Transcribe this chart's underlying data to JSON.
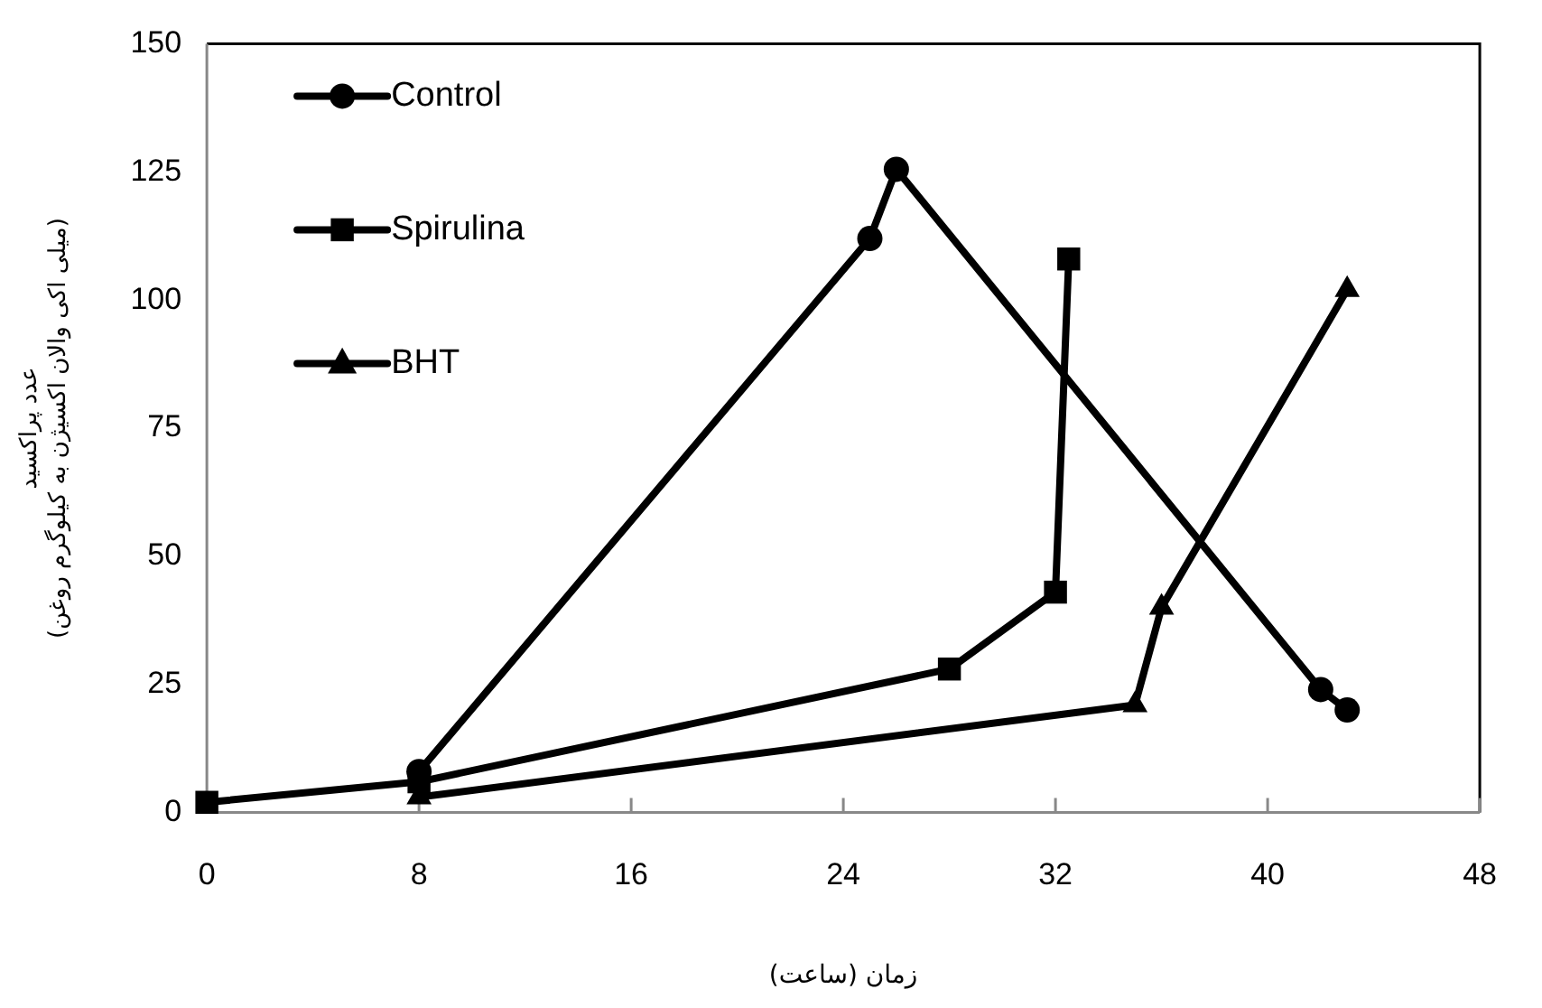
{
  "chart_data": {
    "type": "line",
    "xlabel": "زمان (ساعت)",
    "ylabel": [
      "عدد پراکسید",
      "(میلی اکی والان اکسیژن به کیلوگرم روغن)"
    ],
    "xlim": [
      0,
      48
    ],
    "xticks": [
      0,
      8,
      16,
      24,
      32,
      40,
      48
    ],
    "ylim": [
      0,
      150
    ],
    "yticks": [
      0,
      25,
      50,
      75,
      100,
      125,
      150
    ],
    "grid": false,
    "legend": "top left",
    "series": [
      {
        "name": "Control",
        "color": "#000000",
        "marker": "circle",
        "x": [
          8,
          25,
          26,
          42,
          43
        ],
        "values": [
          8,
          112,
          125.5,
          24,
          20
        ]
      },
      {
        "name": "Spirulina",
        "color": "#000000",
        "marker": "square",
        "x": [
          0,
          8,
          28,
          32,
          32.5
        ],
        "values": [
          2,
          6,
          28,
          43,
          108
        ]
      },
      {
        "name": "BHT",
        "color": "#000000",
        "marker": "triangle",
        "x": [
          8,
          35,
          36,
          43
        ],
        "values": [
          3,
          21,
          40,
          102
        ]
      }
    ]
  }
}
